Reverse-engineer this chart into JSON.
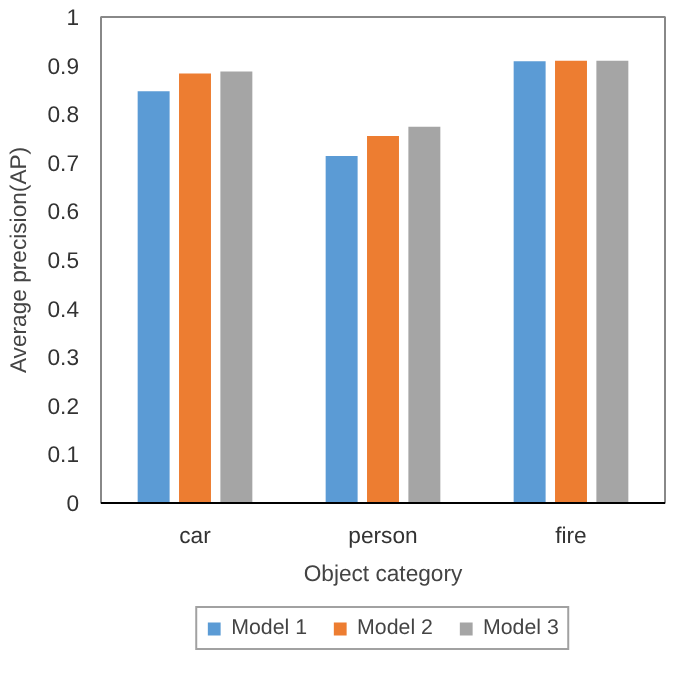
{
  "chart_data": {
    "type": "bar",
    "xlabel": "Object category",
    "ylabel": "Average precision(AP)",
    "categories": [
      "car",
      "person",
      "fire"
    ],
    "series": [
      {
        "name": "Model 1",
        "color": "#5b9bd5",
        "values": [
          0.847,
          0.714,
          0.909
        ]
      },
      {
        "name": "Model 2",
        "color": "#ed7d31",
        "values": [
          0.884,
          0.755,
          0.91
        ]
      },
      {
        "name": "Model 3",
        "color": "#a5a5a5",
        "values": [
          0.888,
          0.774,
          0.91
        ]
      }
    ],
    "ylim": [
      0,
      1
    ],
    "yticks": [
      0,
      0.1,
      0.2,
      0.3,
      0.4,
      0.5,
      0.6,
      0.7,
      0.8,
      0.9,
      1
    ],
    "grid": false,
    "legend": "bottom"
  }
}
